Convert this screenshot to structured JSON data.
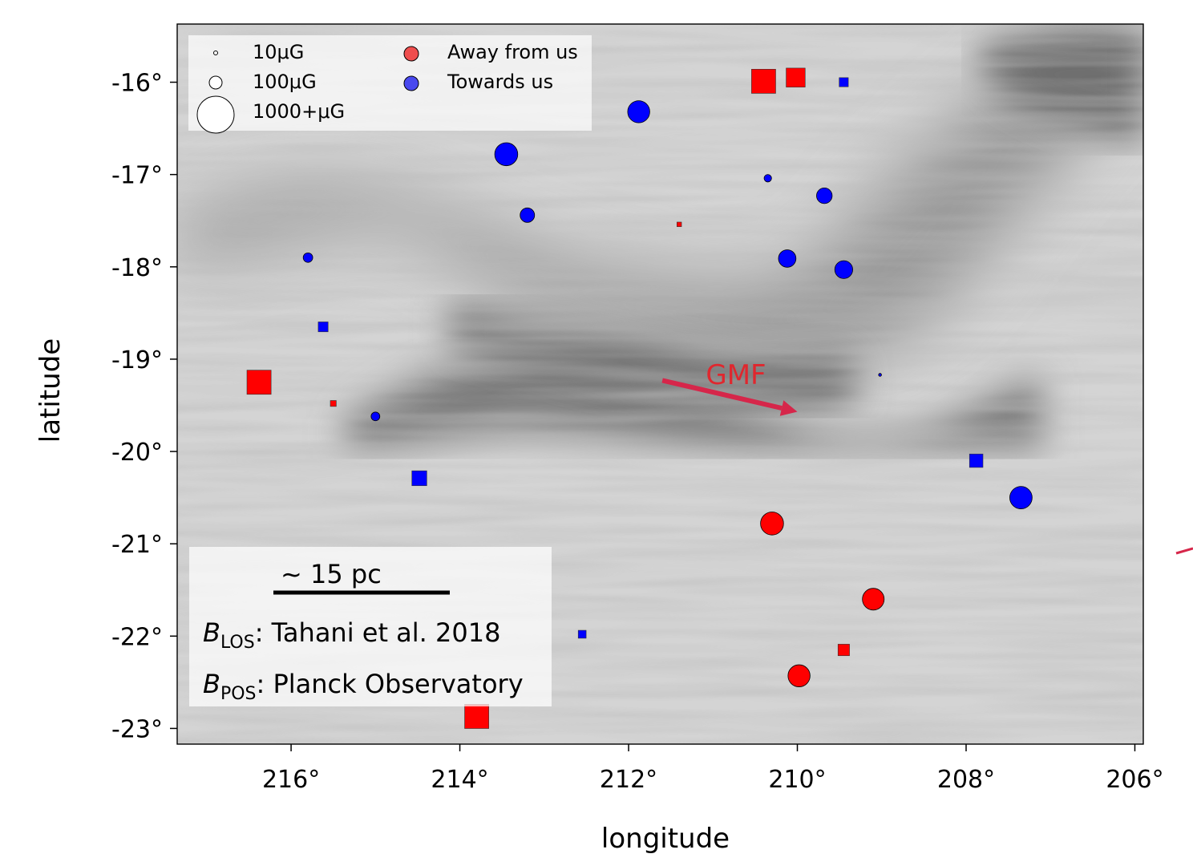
{
  "chart_data": {
    "type": "scatter",
    "xlabel": "longitude",
    "ylabel": "latitude",
    "x_reversed": true,
    "xlim": [
      217.35,
      205.9
    ],
    "ylim": [
      -23.17,
      -15.37
    ],
    "x_ticks": [
      216,
      214,
      212,
      210,
      208,
      206
    ],
    "x_tick_labels": [
      "216°",
      "214°",
      "212°",
      "210°",
      "208°",
      "206°"
    ],
    "y_ticks": [
      -16,
      -17,
      -18,
      -19,
      -20,
      -21,
      -22,
      -23
    ],
    "y_tick_labels": [
      "-16°",
      "-17°",
      "-18°",
      "-19°",
      "-20°",
      "-21°",
      "-22°",
      "-23°"
    ],
    "grid": false,
    "background": "greyscale magnetic field streamline map",
    "colors": {
      "away": "#ff0000",
      "towards": "#0000ff",
      "gmf": "#d6264a"
    },
    "legend": {
      "placement": "top-left",
      "size_entries": [
        "10μG",
        "100μG",
        "1000+μG"
      ],
      "size_values": [
        10,
        100,
        1000
      ],
      "color_entries": [
        "Away from us",
        "Towards us"
      ]
    },
    "annotations": {
      "gmf_label": "GMF",
      "gmf_arrow_from": [
        211.6,
        -19.23
      ],
      "gmf_arrow_to": [
        210.0,
        -19.57
      ],
      "scale_bar_label": "~ 15 pc",
      "blos_prefix": "B",
      "blos_sub": "LOS",
      "blos_text": ": Tahani et al. 2018",
      "bpos_prefix": "B",
      "bpos_sub": "POS",
      "bpos_text": ": Planck Observatory"
    },
    "circles": [
      {
        "lon": 211.88,
        "lat": -16.32,
        "b": 350,
        "dir": "towards"
      },
      {
        "lon": 213.45,
        "lat": -16.78,
        "b": 380,
        "dir": "towards"
      },
      {
        "lon": 213.2,
        "lat": -17.44,
        "b": 150,
        "dir": "towards"
      },
      {
        "lon": 210.35,
        "lat": -17.04,
        "b": 40,
        "dir": "towards"
      },
      {
        "lon": 209.68,
        "lat": -17.23,
        "b": 175,
        "dir": "towards"
      },
      {
        "lon": 210.12,
        "lat": -17.91,
        "b": 220,
        "dir": "towards"
      },
      {
        "lon": 209.45,
        "lat": -18.03,
        "b": 230,
        "dir": "towards"
      },
      {
        "lon": 215.8,
        "lat": -17.9,
        "b": 65,
        "dir": "towards"
      },
      {
        "lon": 215.0,
        "lat": -19.62,
        "b": 55,
        "dir": "towards"
      },
      {
        "lon": 209.02,
        "lat": -19.17,
        "b": 6,
        "dir": "towards"
      },
      {
        "lon": 207.35,
        "lat": -20.5,
        "b": 360,
        "dir": "towards"
      },
      {
        "lon": 210.3,
        "lat": -20.78,
        "b": 380,
        "dir": "away"
      },
      {
        "lon": 209.1,
        "lat": -21.6,
        "b": 340,
        "dir": "away"
      },
      {
        "lon": 209.98,
        "lat": -22.43,
        "b": 350,
        "dir": "away"
      }
    ],
    "squares": [
      {
        "lon": 210.4,
        "lat": -15.99,
        "b": 420,
        "dir": "away"
      },
      {
        "lon": 210.02,
        "lat": -15.95,
        "b": 260,
        "dir": "away"
      },
      {
        "lon": 209.45,
        "lat": -16.0,
        "b": 60,
        "dir": "towards"
      },
      {
        "lon": 211.4,
        "lat": -17.54,
        "b": 15,
        "dir": "away"
      },
      {
        "lon": 215.62,
        "lat": -18.65,
        "b": 70,
        "dir": "towards"
      },
      {
        "lon": 216.38,
        "lat": -19.25,
        "b": 420,
        "dir": "away"
      },
      {
        "lon": 215.5,
        "lat": -19.48,
        "b": 25,
        "dir": "away"
      },
      {
        "lon": 214.48,
        "lat": -20.29,
        "b": 160,
        "dir": "towards"
      },
      {
        "lon": 207.88,
        "lat": -20.1,
        "b": 130,
        "dir": "towards"
      },
      {
        "lon": 212.55,
        "lat": -21.98,
        "b": 45,
        "dir": "towards"
      },
      {
        "lon": 209.45,
        "lat": -22.15,
        "b": 95,
        "dir": "away"
      },
      {
        "lon": 213.8,
        "lat": -22.87,
        "b": 420,
        "dir": "away"
      }
    ]
  }
}
